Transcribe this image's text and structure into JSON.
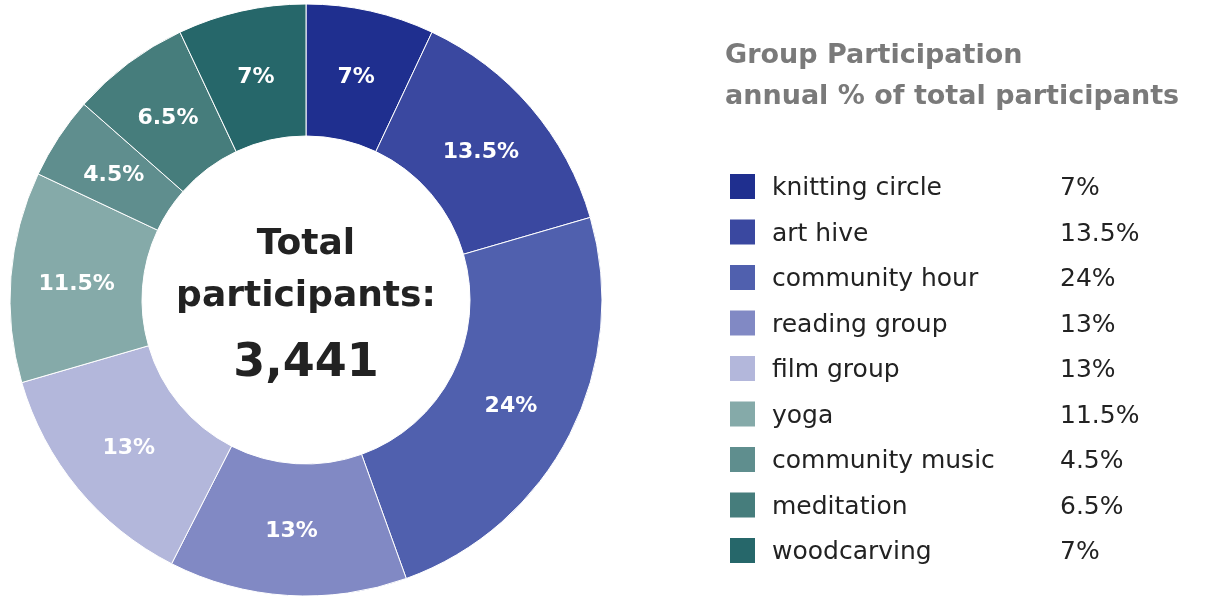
{
  "chart_data": {
    "type": "donut",
    "title": "Group Participation",
    "subtitle": "annual % of total participants",
    "categories": [
      "knitting circle",
      "art hive",
      "community hour",
      "reading group",
      "film group",
      "yoga",
      "community music",
      "meditation",
      "woodcarving"
    ],
    "values": [
      7,
      13.5,
      24,
      13,
      13,
      11.5,
      4.5,
      6.5,
      7
    ],
    "colors": [
      "#1f2f8f",
      "#3a48a0",
      "#5060ae",
      "#8189c4",
      "#b3b7db",
      "#85aaa9",
      "#5f8e8e",
      "#467d7c",
      "#26676a"
    ],
    "value_labels": [
      "7%",
      "13.5%",
      "24%",
      "13%",
      "13%",
      "11.5%",
      "4.5%",
      "6.5%",
      "7%"
    ],
    "legend": "right",
    "annotations": [
      "Total participants:",
      "3,441"
    ]
  }
}
